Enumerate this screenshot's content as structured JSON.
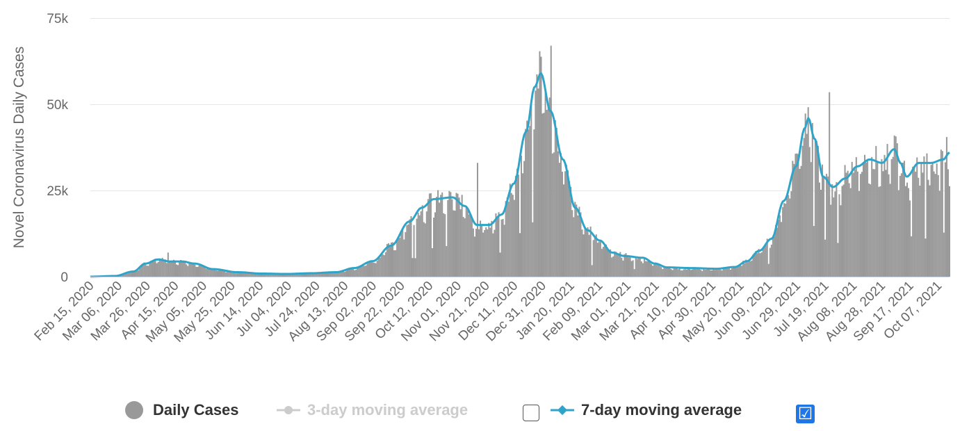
{
  "chart_data": {
    "type": "bar",
    "title": "",
    "ylabel": "Novel Coronavirus Daily Cases",
    "xlabel": "",
    "ylim": [
      0,
      75000
    ],
    "y_ticks": [
      0,
      25000,
      50000,
      75000
    ],
    "y_tick_labels": [
      "0",
      "25k",
      "50k",
      "75k"
    ],
    "x_start": "Feb 15, 2020",
    "x_end": "Oct 15, 2021",
    "num_days": 609,
    "x_tick_labels": [
      "Feb 15, 2020",
      "Mar 06, 2020",
      "Mar 26, 2020",
      "Apr 15, 2020",
      "May 05, 2020",
      "May 25, 2020",
      "Jun 14, 2020",
      "Jul 04, 2020",
      "Jul 24, 2020",
      "Aug 13, 2020",
      "Sep 02, 2020",
      "Sep 22, 2020",
      "Oct 12, 2020",
      "Nov 01, 2020",
      "Nov 21, 2020",
      "Dec 11, 2020",
      "Dec 31, 2020",
      "Jan 20, 2021",
      "Feb 09, 2021",
      "Mar 01, 2021",
      "Mar 21, 2021",
      "Apr 10, 2021",
      "Apr 30, 2021",
      "May 20, 2021",
      "Jun 09, 2021",
      "Jun 29, 2021",
      "Jul 19, 2021",
      "Aug 08, 2021",
      "Aug 28, 2021",
      "Sep 17, 2021",
      "Oct 07, 2021"
    ],
    "x_tick_day_step": 20,
    "series": [
      {
        "name": "Daily Cases",
        "kind": "bar",
        "color": "#999999",
        "trend_knots": [
          [
            0,
            0
          ],
          [
            20,
            200
          ],
          [
            35,
            1500
          ],
          [
            45,
            3800
          ],
          [
            55,
            5200
          ],
          [
            65,
            4500
          ],
          [
            75,
            4500
          ],
          [
            85,
            3800
          ],
          [
            100,
            2200
          ],
          [
            120,
            1300
          ],
          [
            140,
            900
          ],
          [
            160,
            800
          ],
          [
            180,
            1000
          ],
          [
            200,
            1300
          ],
          [
            215,
            2500
          ],
          [
            230,
            4500
          ],
          [
            245,
            9000
          ],
          [
            260,
            16000
          ],
          [
            270,
            20000
          ],
          [
            280,
            22500
          ],
          [
            295,
            23000
          ],
          [
            305,
            21000
          ],
          [
            315,
            15000
          ],
          [
            325,
            15000
          ],
          [
            335,
            18000
          ],
          [
            345,
            27000
          ],
          [
            355,
            42000
          ],
          [
            362,
            55000
          ],
          [
            367,
            59000
          ],
          [
            375,
            48000
          ],
          [
            385,
            34000
          ],
          [
            395,
            20000
          ],
          [
            405,
            13500
          ],
          [
            415,
            10500
          ],
          [
            425,
            7500
          ],
          [
            435,
            6200
          ],
          [
            450,
            5200
          ],
          [
            460,
            3800
          ],
          [
            470,
            2500
          ],
          [
            490,
            2300
          ],
          [
            510,
            2100
          ],
          [
            525,
            2800
          ],
          [
            535,
            4500
          ],
          [
            545,
            7500
          ],
          [
            555,
            11000
          ],
          [
            565,
            22000
          ],
          [
            575,
            32000
          ],
          [
            582,
            43000
          ],
          [
            585,
            46000
          ],
          [
            590,
            40000
          ],
          [
            597,
            29000
          ],
          [
            605,
            25000
          ],
          [
            615,
            29000
          ],
          [
            625,
            33000
          ],
          [
            635,
            35000
          ],
          [
            645,
            33000
          ],
          [
            655,
            37000
          ],
          [
            660,
            33000
          ],
          [
            665,
            29000
          ],
          [
            675,
            33000
          ],
          [
            685,
            33000
          ],
          [
            695,
            33000
          ],
          [
            700,
            35000
          ]
        ],
        "peaks": [
          [
            "Apr 10, 2020",
            7000
          ],
          [
            "Nov 15, 2020",
            33000
          ],
          [
            "Jan 06, 2021",
            67000
          ],
          [
            "Jul 22, 2021",
            53500
          ],
          [
            "Oct 13, 2021",
            40500
          ]
        ]
      },
      {
        "name": "3-day moving average",
        "kind": "line",
        "color": "#cccccc",
        "visible": false
      },
      {
        "name": "7-day moving average",
        "kind": "line",
        "color": "#2fa4c8",
        "visible": true,
        "points": [
          [
            0,
            0
          ],
          [
            20,
            200
          ],
          [
            35,
            1500
          ],
          [
            45,
            3800
          ],
          [
            55,
            5000
          ],
          [
            65,
            4400
          ],
          [
            75,
            4400
          ],
          [
            85,
            3800
          ],
          [
            100,
            2200
          ],
          [
            120,
            1300
          ],
          [
            140,
            900
          ],
          [
            160,
            800
          ],
          [
            180,
            1000
          ],
          [
            200,
            1300
          ],
          [
            215,
            2500
          ],
          [
            230,
            4500
          ],
          [
            245,
            9000
          ],
          [
            260,
            16000
          ],
          [
            270,
            20000
          ],
          [
            280,
            22500
          ],
          [
            295,
            23000
          ],
          [
            305,
            20500
          ],
          [
            315,
            15000
          ],
          [
            325,
            15000
          ],
          [
            335,
            18000
          ],
          [
            345,
            27000
          ],
          [
            355,
            42000
          ],
          [
            362,
            55000
          ],
          [
            367,
            59000
          ],
          [
            375,
            48000
          ],
          [
            385,
            34000
          ],
          [
            395,
            20000
          ],
          [
            405,
            13500
          ],
          [
            415,
            10500
          ],
          [
            425,
            7000
          ],
          [
            435,
            6000
          ],
          [
            450,
            5500
          ],
          [
            460,
            3800
          ],
          [
            470,
            2700
          ],
          [
            490,
            2500
          ],
          [
            510,
            2300
          ],
          [
            525,
            2800
          ],
          [
            535,
            4500
          ],
          [
            545,
            7500
          ],
          [
            555,
            11000
          ],
          [
            565,
            22000
          ],
          [
            575,
            32000
          ],
          [
            582,
            43000
          ],
          [
            585,
            46000
          ],
          [
            590,
            40000
          ],
          [
            597,
            29000
          ],
          [
            605,
            26000
          ],
          [
            615,
            28500
          ],
          [
            625,
            32000
          ],
          [
            635,
            34000
          ],
          [
            645,
            33000
          ],
          [
            655,
            37000
          ],
          [
            660,
            33000
          ],
          [
            665,
            29000
          ],
          [
            675,
            33000
          ],
          [
            685,
            33000
          ],
          [
            695,
            34000
          ],
          [
            700,
            36000
          ]
        ]
      }
    ],
    "legend_position": "bottom-center"
  },
  "legend": {
    "daily_label": "Daily Cases",
    "avg3_label": "3-day moving average",
    "avg7_label": "7-day moving average",
    "avg3_checked": false,
    "avg7_checked": true
  },
  "colors": {
    "bars": "#999999",
    "avg7": "#2fa4c8",
    "avg3": "#cccccc",
    "grid": "#e6e6e6",
    "checkbox": "#1f76e6"
  },
  "icons": {
    "checkmark": "☑"
  }
}
